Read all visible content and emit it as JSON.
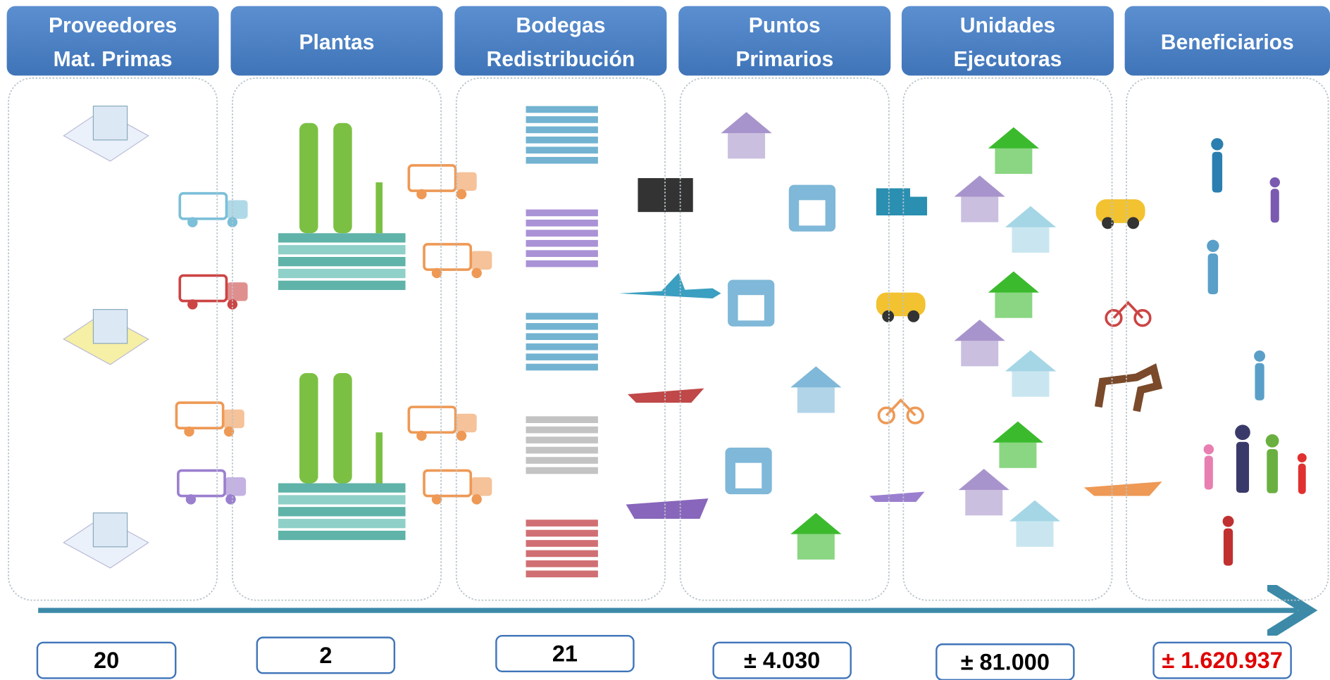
{
  "columns": [
    {
      "header": [
        "Proveedores",
        "Mat. Primas"
      ],
      "count": "20"
    },
    {
      "header": [
        "Plantas"
      ],
      "count": "2"
    },
    {
      "header": [
        "Bodegas",
        "Redistribución"
      ],
      "count": "21"
    },
    {
      "header": [
        "Puntos",
        "Primarios"
      ],
      "count": "± 4.030"
    },
    {
      "header": [
        "Unidades",
        "Ejecutoras"
      ],
      "count": "± 81.000"
    },
    {
      "header": [
        "Beneficiarios"
      ],
      "count": "± 1.620.937"
    }
  ]
}
